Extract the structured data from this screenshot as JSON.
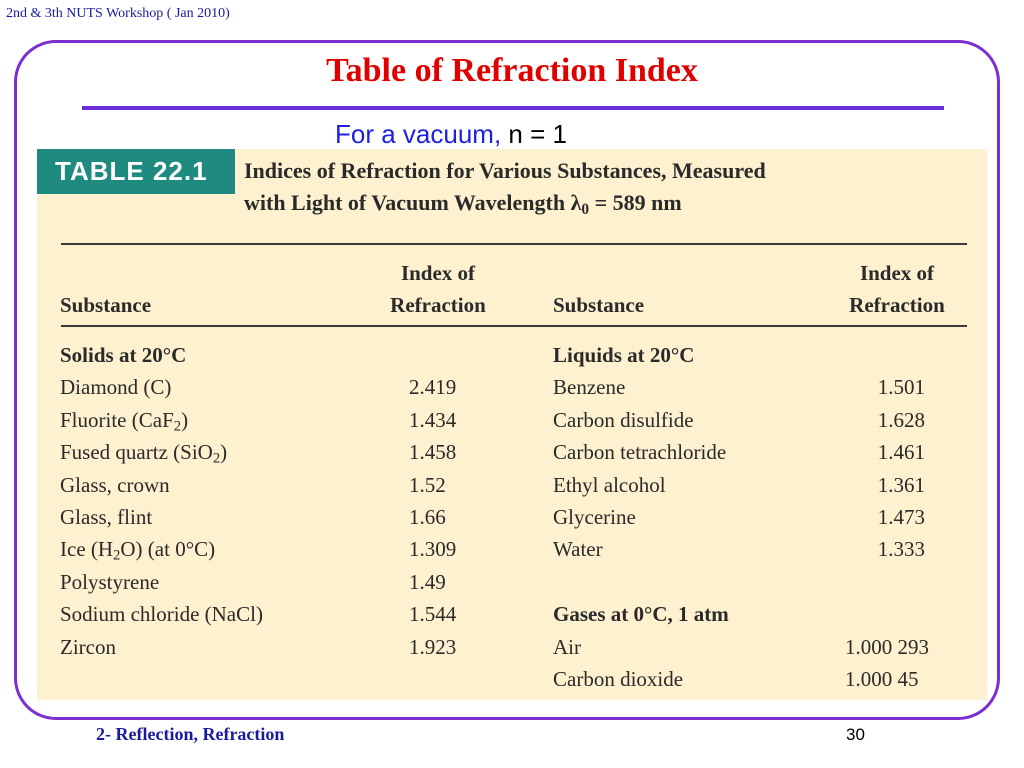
{
  "header": {
    "workshop": "2nd & 3th NUTS Workshop ( Jan 2010)"
  },
  "slide": {
    "title": "Table of  Refraction Index",
    "vacuum_prefix": "For a vacuum, ",
    "vacuum_eq": "n = 1"
  },
  "table": {
    "badge": "TABLE 22.1",
    "caption_line1": "Indices of Refraction for Various Substances, Measured",
    "caption_line2_prefix": "with Light of Vacuum Wavelength λ",
    "caption_line2_sub": "0",
    "caption_line2_suffix": " = 589 nm",
    "columns": {
      "substance": "Substance",
      "index_line1": "Index of",
      "index_line2": "Refraction"
    },
    "left_group": "Solids at 20°C",
    "left_rows": [
      {
        "pre": "Diamond (C)",
        "sub": "",
        "post": "",
        "value": "2.419"
      },
      {
        "pre": "Fluorite (CaF",
        "sub": "2",
        "post": ")",
        "value": "1.434"
      },
      {
        "pre": "Fused quartz (SiO",
        "sub": "2",
        "post": ")",
        "value": "1.458"
      },
      {
        "pre": "Glass, crown",
        "sub": "",
        "post": "",
        "value": "1.52"
      },
      {
        "pre": "Glass, flint",
        "sub": "",
        "post": "",
        "value": "1.66"
      },
      {
        "pre": "Ice (H",
        "sub": "2",
        "post": "O)  (at 0°C)",
        "value": "1.309"
      },
      {
        "pre": "Polystyrene",
        "sub": "",
        "post": "",
        "value": "1.49"
      },
      {
        "pre": "Sodium chloride (NaCl)",
        "sub": "",
        "post": "",
        "value": "1.544"
      },
      {
        "pre": "Zircon",
        "sub": "",
        "post": "",
        "value": "1.923"
      }
    ],
    "right_group_1": "Liquids at 20°C",
    "right_rows_1": [
      {
        "name": "Benzene",
        "value": "1.501"
      },
      {
        "name": "Carbon disulfide",
        "value": "1.628"
      },
      {
        "name": "Carbon tetrachloride",
        "value": "1.461"
      },
      {
        "name": "Ethyl alcohol",
        "value": "1.361"
      },
      {
        "name": "Glycerine",
        "value": "1.473"
      },
      {
        "name": "Water",
        "value": "1.333"
      }
    ],
    "right_group_2": "Gases at 0°C, 1 atm",
    "right_rows_2": [
      {
        "name": "Air",
        "value": "1.000 293"
      },
      {
        "name": "Carbon dioxide",
        "value": "1.000 45"
      }
    ]
  },
  "footer": {
    "section": "2- Reflection, Refraction",
    "page": "30"
  }
}
